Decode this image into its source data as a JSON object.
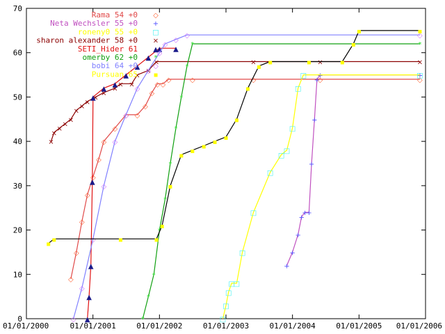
{
  "chart_data": {
    "type": "line",
    "title": "",
    "xlabel": "",
    "ylabel": "",
    "xlim": [
      "2000-01-01",
      "2006-01-01"
    ],
    "ylim": [
      0,
      70
    ],
    "x_ticks": [
      "01/01/2000",
      "01/01/2001",
      "01/01/2002",
      "01/01/2003",
      "01/01/2004",
      "01/01/2005",
      "01/01/2006"
    ],
    "y_ticks": [
      0,
      10,
      20,
      30,
      40,
      50,
      60,
      70
    ],
    "grid": false,
    "legend_position": "top-right",
    "series": [
      {
        "name": "Rama",
        "label": "Rama 54 +0",
        "marker": "◇",
        "color": "#e04848",
        "marker_color": "#ff6030",
        "points": [
          [
            "2000-09-01",
            9
          ],
          [
            "2000-10-01",
            15
          ],
          [
            "2000-11-01",
            22
          ],
          [
            "2000-12-01",
            28
          ],
          [
            "2001-01-01",
            32
          ],
          [
            "2001-02-01",
            36
          ],
          [
            "2001-03-01",
            40
          ],
          [
            "2001-05-01",
            43
          ],
          [
            "2001-07-01",
            46
          ],
          [
            "2001-09-01",
            46
          ],
          [
            "2001-10-15",
            48
          ],
          [
            "2001-11-20",
            51
          ],
          [
            "2001-12-20",
            53
          ],
          [
            "2002-01-20",
            53
          ],
          [
            "2002-02-20",
            54
          ],
          [
            "2002-07-01",
            54
          ],
          [
            "2003-06-01",
            54
          ],
          [
            "2004-06-01",
            54
          ],
          [
            "2005-12-01",
            54
          ]
        ]
      },
      {
        "name": "Neta Wechsler",
        "label": "Neta Wechsler 55 +0",
        "marker": "+",
        "color": "#c050c0",
        "marker_color": "#5050ff",
        "points": [
          [
            "2003-12-01",
            12
          ],
          [
            "2004-01-01",
            15
          ],
          [
            "2004-02-01",
            19
          ],
          [
            "2004-02-20",
            23
          ],
          [
            "2004-03-10",
            24
          ],
          [
            "2004-04-01",
            24
          ],
          [
            "2004-04-15",
            35
          ],
          [
            "2004-05-01",
            45
          ],
          [
            "2004-05-15",
            54
          ],
          [
            "2004-06-01",
            55
          ],
          [
            "2005-12-01",
            55
          ]
        ]
      },
      {
        "name": "roneny0",
        "label": "roneny0 55 +0",
        "marker": "□",
        "color": "#ffff00",
        "marker_color": "#40f0f0",
        "points": [
          [
            "2002-12-15",
            0
          ],
          [
            "2003-01-01",
            3
          ],
          [
            "2003-01-15",
            6
          ],
          [
            "2003-02-01",
            8
          ],
          [
            "2003-03-01",
            8
          ],
          [
            "2003-04-01",
            15
          ],
          [
            "2003-06-01",
            24
          ],
          [
            "2003-09-01",
            33
          ],
          [
            "2003-11-01",
            37
          ],
          [
            "2003-12-01",
            38
          ],
          [
            "2004-01-01",
            43
          ],
          [
            "2004-02-01",
            52
          ],
          [
            "2004-03-01",
            55
          ],
          [
            "2005-12-01",
            55
          ]
        ]
      },
      {
        "name": "sharon alexander",
        "label": "sharon alexander 58 +0",
        "marker": "×",
        "color": "#8b0000",
        "marker_color": "#8b0000",
        "points": [
          [
            "2000-05-15",
            40
          ],
          [
            "2000-06-01",
            42
          ],
          [
            "2000-07-01",
            43
          ],
          [
            "2000-08-01",
            44
          ],
          [
            "2000-09-01",
            45
          ],
          [
            "2000-10-01",
            47
          ],
          [
            "2000-11-01",
            48
          ],
          [
            "2000-12-01",
            49
          ],
          [
            "2001-01-15",
            50
          ],
          [
            "2001-03-01",
            51
          ],
          [
            "2001-05-01",
            52
          ],
          [
            "2001-06-01",
            53
          ],
          [
            "2001-08-01",
            53
          ],
          [
            "2001-09-01",
            55
          ],
          [
            "2001-11-01",
            56
          ],
          [
            "2001-12-15",
            58
          ],
          [
            "2003-06-01",
            58
          ],
          [
            "2004-06-01",
            58
          ],
          [
            "2005-12-01",
            58
          ]
        ]
      },
      {
        "name": "SETI_Hider",
        "label": "SETI_Hider 61",
        "marker": "▲",
        "color": "#e01010",
        "marker_color": "#1a1a8a",
        "points": [
          [
            "2000-12-01",
            0
          ],
          [
            "2000-12-10",
            5
          ],
          [
            "2000-12-20",
            12
          ],
          [
            "2000-12-28",
            31
          ],
          [
            "2001-01-01",
            50
          ],
          [
            "2001-03-01",
            52
          ],
          [
            "2001-05-01",
            53
          ],
          [
            "2001-07-01",
            55
          ],
          [
            "2001-09-01",
            57
          ],
          [
            "2001-11-01",
            59
          ],
          [
            "2002-01-01",
            61
          ],
          [
            "2002-04-01",
            61
          ]
        ]
      },
      {
        "name": "omerby",
        "label": "omerby 62 +0",
        "marker": "*",
        "color": "#10a010",
        "marker_color": "#30e030",
        "points": [
          [
            "2001-10-01",
            0
          ],
          [
            "2001-11-01",
            5
          ],
          [
            "2001-12-01",
            10
          ],
          [
            "2002-01-01",
            20
          ],
          [
            "2002-02-01",
            27
          ],
          [
            "2002-03-01",
            35
          ],
          [
            "2002-04-01",
            43
          ],
          [
            "2002-05-01",
            50
          ],
          [
            "2002-06-01",
            57
          ],
          [
            "2002-07-01",
            62
          ],
          [
            "2005-12-01",
            62
          ]
        ]
      },
      {
        "name": "bobi",
        "label": "bobi 64 +0",
        "marker": "◇",
        "color": "#8080ff",
        "marker_color": "#d070ff",
        "points": [
          [
            "2000-09-15",
            0
          ],
          [
            "2000-11-01",
            7
          ],
          [
            "2001-01-01",
            18
          ],
          [
            "2001-03-01",
            30
          ],
          [
            "2001-05-01",
            40
          ],
          [
            "2001-07-01",
            46
          ],
          [
            "2001-09-01",
            52
          ],
          [
            "2001-11-01",
            56
          ],
          [
            "2002-01-01",
            60
          ],
          [
            "2002-02-01",
            62
          ],
          [
            "2002-04-01",
            63
          ],
          [
            "2002-06-01",
            64
          ],
          [
            "2005-12-01",
            64
          ]
        ]
      },
      {
        "name": "Pursuan",
        "label": "Pursuan 65",
        "marker": "▪",
        "color": "#000000",
        "marker_color": "#ffff00",
        "points": [
          [
            "2000-05-01",
            17
          ],
          [
            "2000-06-01",
            18
          ],
          [
            "2001-06-01",
            18
          ],
          [
            "2001-12-15",
            18
          ],
          [
            "2002-01-15",
            21
          ],
          [
            "2002-03-01",
            30
          ],
          [
            "2002-05-01",
            37
          ],
          [
            "2002-07-01",
            38
          ],
          [
            "2002-09-01",
            39
          ],
          [
            "2002-11-01",
            40
          ],
          [
            "2003-01-01",
            41
          ],
          [
            "2003-03-01",
            45
          ],
          [
            "2003-05-01",
            52
          ],
          [
            "2003-07-01",
            57
          ],
          [
            "2003-09-01",
            58
          ],
          [
            "2004-04-01",
            58
          ],
          [
            "2004-10-01",
            58
          ],
          [
            "2004-12-01",
            62
          ],
          [
            "2005-01-01",
            65
          ],
          [
            "2005-12-01",
            65
          ]
        ]
      }
    ]
  }
}
